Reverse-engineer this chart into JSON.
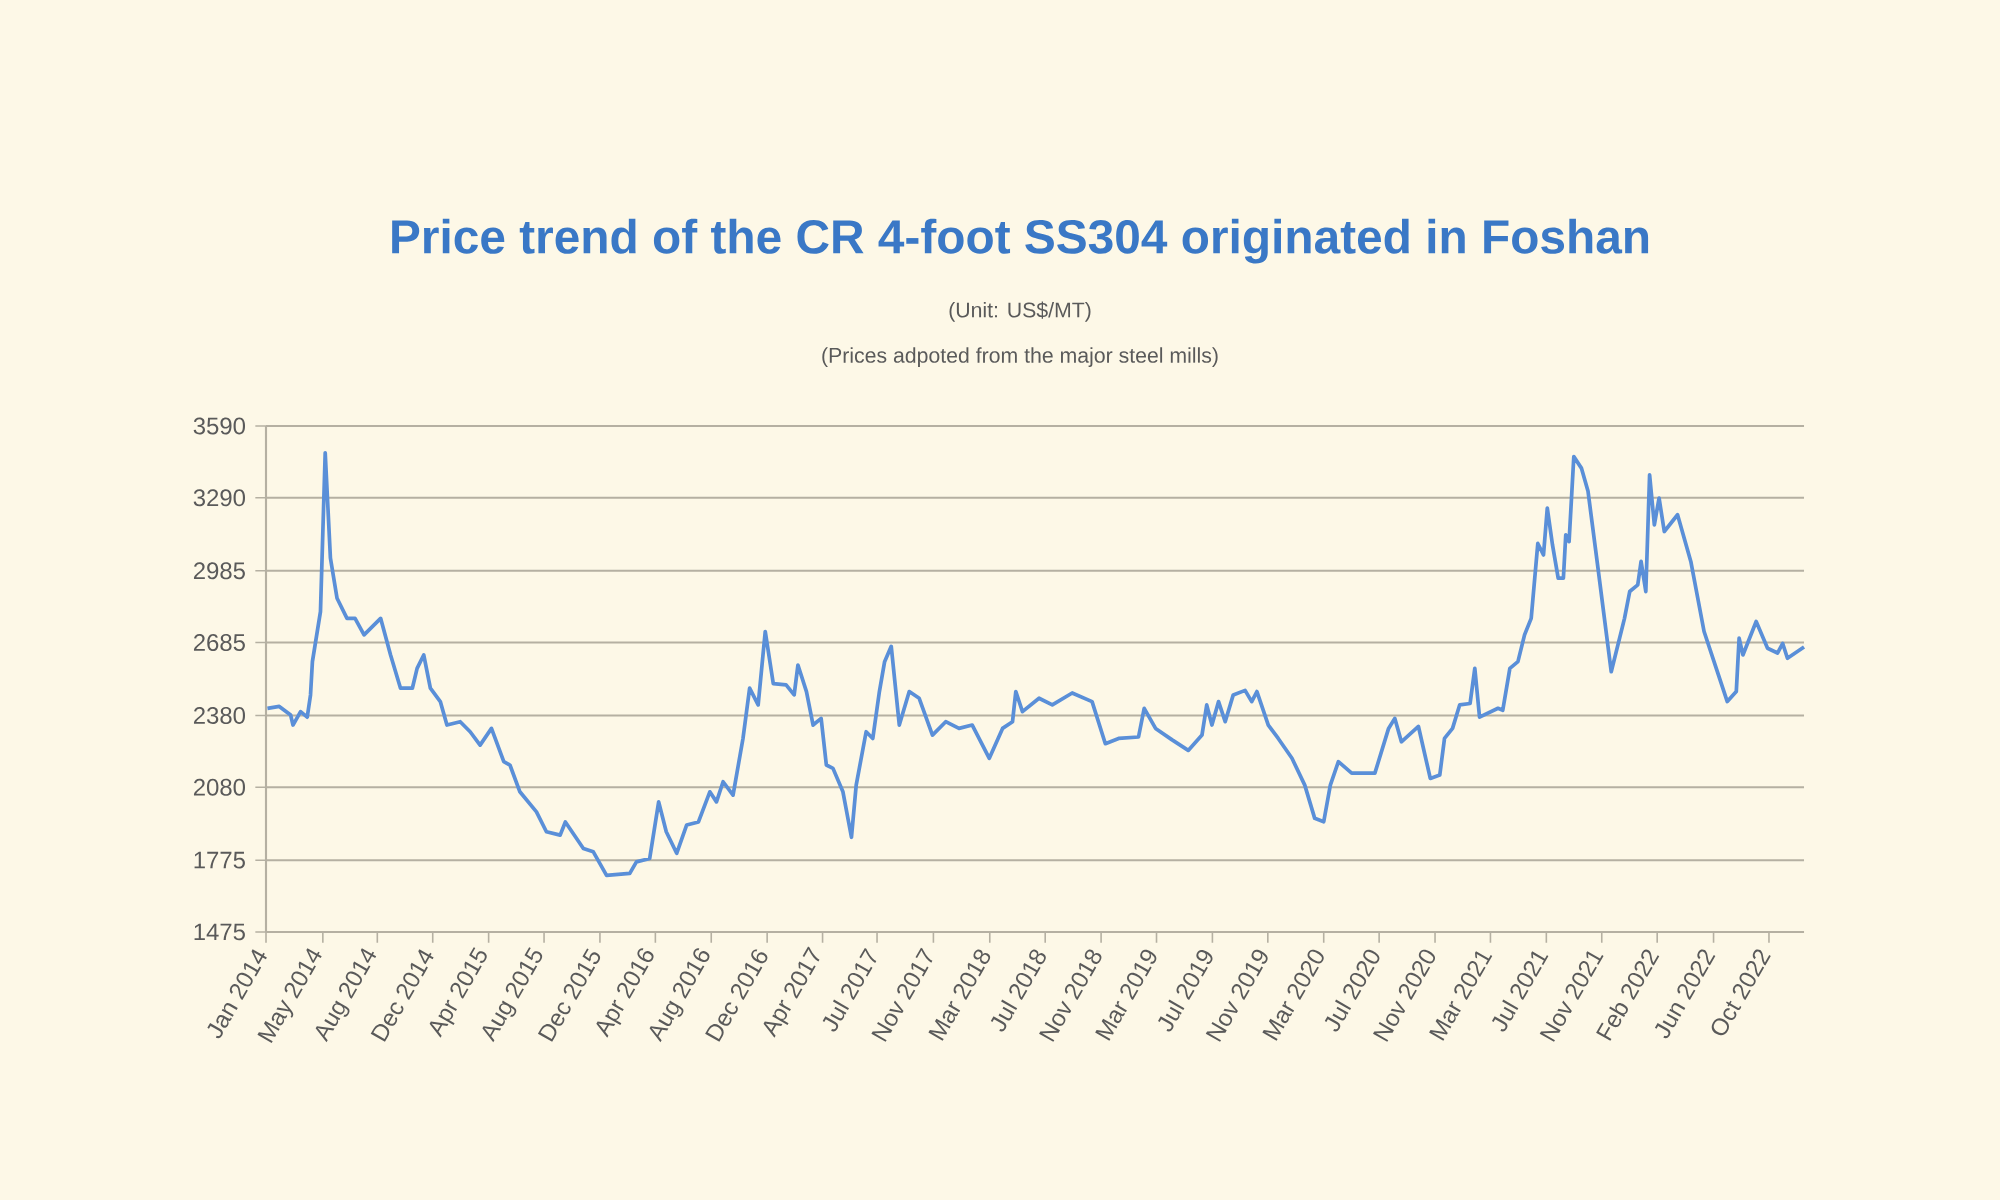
{
  "chart_data": {
    "type": "line",
    "title": "Price trend of the CR 4-foot SS304 originated in Foshan",
    "subtitle": "(Unit: US$/MT)",
    "annotations": [
      "(Prices adpoted from the major steel mills)"
    ],
    "color": "#5a8fd8",
    "grid": "y",
    "xlim": [
      "2014-01-01",
      "2023-01-08"
    ],
    "ylim": [
      1475,
      3590
    ],
    "yticks": [
      1475,
      1775,
      2080,
      2380,
      2685,
      2985,
      3290,
      3590
    ],
    "xticks": [
      {
        "value": "2014-01-01",
        "label": "Jan 2014"
      },
      {
        "value": "2014-05-01",
        "label": "May 2014"
      },
      {
        "value": "2014-08-26",
        "label": "Aug 2014"
      },
      {
        "value": "2014-12-23",
        "label": "Dec 2014"
      },
      {
        "value": "2015-04-21",
        "label": "Apr 2015"
      },
      {
        "value": "2015-08-18",
        "label": "Aug 2015"
      },
      {
        "value": "2015-12-16",
        "label": "Dec 2015"
      },
      {
        "value": "2016-04-13",
        "label": "Apr 2016"
      },
      {
        "value": "2016-08-11",
        "label": "Aug 2016"
      },
      {
        "value": "2016-12-09",
        "label": "Dec 2016"
      },
      {
        "value": "2017-04-06",
        "label": "Apr 2017"
      },
      {
        "value": "2017-07-31",
        "label": "Jul 2017"
      },
      {
        "value": "2017-11-30",
        "label": "Nov 2017"
      },
      {
        "value": "2018-03-29",
        "label": "Mar 2018"
      },
      {
        "value": "2018-07-26",
        "label": "Jul 2018"
      },
      {
        "value": "2018-11-24",
        "label": "Nov 2018"
      },
      {
        "value": "2019-03-21",
        "label": "Mar 2019"
      },
      {
        "value": "2019-07-19",
        "label": "Jul 2019"
      },
      {
        "value": "2019-11-16",
        "label": "Nov 2019"
      },
      {
        "value": "2020-03-14",
        "label": "Mar 2020"
      },
      {
        "value": "2020-07-11",
        "label": "Jul 2020"
      },
      {
        "value": "2020-11-09",
        "label": "Nov 2020"
      },
      {
        "value": "2021-03-06",
        "label": "Mar 2021"
      },
      {
        "value": "2021-07-04",
        "label": "Jul 2021"
      },
      {
        "value": "2021-11-01",
        "label": "Nov 2021"
      },
      {
        "value": "2022-02-28",
        "label": "Feb 2022"
      },
      {
        "value": "2022-06-27",
        "label": "Jun 2022"
      },
      {
        "value": "2022-10-24",
        "label": "Oct 2022"
      }
    ],
    "x": [
      "2014-01-04",
      "2014-01-29",
      "2014-02-23",
      "2014-02-28",
      "2014-03-14",
      "2014-03-28",
      "2014-04-05",
      "2014-04-09",
      "2014-04-26",
      "2014-05-06",
      "2014-05-17",
      "2014-06-01",
      "2014-06-22",
      "2014-07-09",
      "2014-07-28",
      "2014-09-03",
      "2014-09-24",
      "2014-10-15",
      "2014-11-10",
      "2014-11-20",
      "2014-12-04",
      "2014-12-18",
      "2015-01-09",
      "2015-01-23",
      "2015-02-21",
      "2015-03-12",
      "2015-04-03",
      "2015-04-27",
      "2015-05-23",
      "2015-06-06",
      "2015-06-27",
      "2015-08-02",
      "2015-08-23",
      "2015-09-22",
      "2015-10-03",
      "2015-11-11",
      "2015-12-02",
      "2015-12-30",
      "2016-02-19",
      "2016-03-03",
      "2016-04-01",
      "2016-04-20",
      "2016-05-06",
      "2016-05-28",
      "2016-06-19",
      "2016-07-14",
      "2016-08-08",
      "2016-08-22",
      "2016-09-06",
      "2016-09-27",
      "2016-10-18",
      "2016-11-02",
      "2016-11-20",
      "2016-12-05",
      "2016-12-22",
      "2017-01-19",
      "2017-02-06",
      "2017-02-14",
      "2017-03-02",
      "2017-03-16",
      "2017-04-03",
      "2017-04-14",
      "2017-04-28",
      "2017-05-19",
      "2017-06-07",
      "2017-06-17",
      "2017-07-08",
      "2017-07-22",
      "2017-08-06",
      "2017-08-17",
      "2017-09-01",
      "2017-09-18",
      "2017-10-09",
      "2017-10-30",
      "2017-11-28",
      "2017-12-26",
      "2018-01-24",
      "2018-02-22",
      "2018-03-28",
      "2018-04-26",
      "2018-05-17",
      "2018-05-24",
      "2018-06-08",
      "2018-07-13",
      "2018-08-11",
      "2018-09-23",
      "2018-11-05",
      "2018-12-03",
      "2019-01-01",
      "2019-02-13",
      "2019-02-25",
      "2019-03-19",
      "2019-04-24",
      "2019-05-28",
      "2019-06-27",
      "2019-07-07",
      "2019-07-18",
      "2019-08-02",
      "2019-08-16",
      "2019-09-03",
      "2019-09-28",
      "2019-10-12",
      "2019-10-23",
      "2019-11-17",
      "2019-12-08",
      "2020-01-07",
      "2020-02-04",
      "2020-02-25",
      "2020-03-14",
      "2020-03-28",
      "2020-04-15",
      "2020-05-13",
      "2020-07-02",
      "2020-08-01",
      "2020-08-14",
      "2020-08-28",
      "2020-10-04",
      "2020-10-29",
      "2020-11-19",
      "2020-11-29",
      "2020-12-16",
      "2021-01-01",
      "2021-01-23",
      "2021-02-03",
      "2021-02-13",
      "2021-03-22",
      "2021-04-02",
      "2021-04-17",
      "2021-05-04",
      "2021-05-18",
      "2021-06-02",
      "2021-06-16",
      "2021-06-28",
      "2021-07-06",
      "2021-07-17",
      "2021-07-29",
      "2021-08-10",
      "2021-08-15",
      "2021-08-22",
      "2021-09-02",
      "2021-09-18",
      "2021-10-02",
      "2021-10-23",
      "2021-11-21",
      "2021-12-19",
      "2021-12-30",
      "2022-01-17",
      "2022-01-24",
      "2022-02-04",
      "2022-02-12",
      "2022-02-22",
      "2022-03-02",
      "2022-03-13",
      "2022-04-11",
      "2022-05-09",
      "2022-06-07",
      "2022-07-05",
      "2022-07-26",
      "2022-08-15",
      "2022-08-21",
      "2022-08-29",
      "2022-09-27",
      "2022-10-21",
      "2022-11-12",
      "2022-11-23",
      "2022-12-03",
      "2023-01-08"
    ],
    "values": [
      2410,
      2418,
      2382,
      2340,
      2396,
      2373,
      2466,
      2605,
      2814,
      3478,
      3038,
      2870,
      2786,
      2786,
      2717,
      2786,
      2633,
      2494,
      2494,
      2577,
      2633,
      2494,
      2438,
      2340,
      2354,
      2312,
      2256,
      2326,
      2187,
      2173,
      2061,
      1977,
      1894,
      1880,
      1935,
      1824,
      1810,
      1712,
      1720,
      1768,
      1782,
      2019,
      1894,
      1804,
      1922,
      1935,
      2061,
      2019,
      2103,
      2047,
      2284,
      2494,
      2424,
      2731,
      2513,
      2508,
      2466,
      2591,
      2480,
      2340,
      2368,
      2173,
      2159,
      2061,
      1871,
      2089,
      2312,
      2284,
      2480,
      2605,
      2669,
      2340,
      2480,
      2452,
      2298,
      2354,
      2326,
      2340,
      2201,
      2326,
      2354,
      2480,
      2396,
      2452,
      2424,
      2474,
      2438,
      2262,
      2284,
      2290,
      2410,
      2326,
      2278,
      2234,
      2298,
      2424,
      2340,
      2438,
      2354,
      2466,
      2485,
      2438,
      2480,
      2340,
      2284,
      2201,
      2089,
      1950,
      1936,
      2089,
      2187,
      2139,
      2139,
      2326,
      2368,
      2270,
      2334,
      2117,
      2131,
      2284,
      2326,
      2424,
      2430,
      2577,
      2373,
      2410,
      2402,
      2577,
      2605,
      2717,
      2786,
      3099,
      3051,
      3247,
      3093,
      2954,
      2954,
      3135,
      3107,
      3462,
      3414,
      3317,
      2996,
      2563,
      2786,
      2898,
      2926,
      3024,
      2898,
      3386,
      3177,
      3289,
      3149,
      3219,
      3024,
      2731,
      2563,
      2438,
      2480,
      2703,
      2633,
      2773,
      2661,
      2641,
      2681,
      2619,
      2666
    ]
  }
}
